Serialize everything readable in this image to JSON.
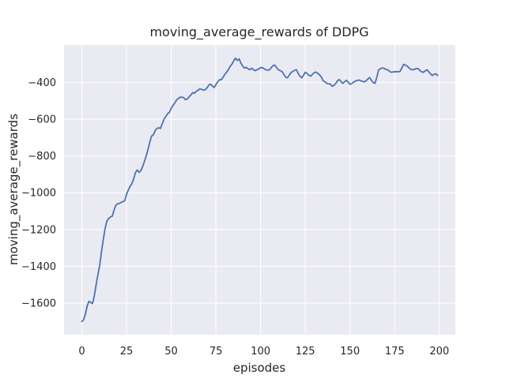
{
  "figure": {
    "background_color": "#ffffff"
  },
  "chart_data": {
    "type": "line",
    "title": "moving_average_rewards of DDPG",
    "xlabel": "episodes",
    "ylabel": "moving_average_rewards",
    "plot_bg_color": "#eaeaf2",
    "grid_color": "#ffffff",
    "text_color": "#262626",
    "line_color": "#4c72b0",
    "line_width": 1.8,
    "grid": true,
    "legend": false,
    "xticks": [
      0,
      25,
      50,
      75,
      100,
      125,
      150,
      175,
      200
    ],
    "xtick_labels": [
      "0",
      "25",
      "50",
      "75",
      "100",
      "125",
      "150",
      "175",
      "200"
    ],
    "yticks": [
      -400,
      -600,
      -800,
      -1000,
      -1200,
      -1400,
      -1600
    ],
    "ytick_labels": [
      "−400",
      "−600",
      "−800",
      "−1000",
      "−1200",
      "−1400",
      "−1600"
    ],
    "xlim": [
      -9.95,
      208.95
    ],
    "ylim": [
      -1771.6,
      -196.4
    ],
    "x_start": 0,
    "x_step": 1,
    "series": [
      {
        "name": "moving_average_rewards",
        "values": [
          -1700,
          -1690,
          -1660,
          -1615,
          -1590,
          -1597,
          -1602,
          -1560,
          -1500,
          -1445,
          -1395,
          -1320,
          -1255,
          -1195,
          -1155,
          -1140,
          -1132,
          -1128,
          -1095,
          -1068,
          -1060,
          -1058,
          -1052,
          -1048,
          -1043,
          -1009,
          -985,
          -965,
          -950,
          -925,
          -890,
          -876,
          -889,
          -880,
          -858,
          -830,
          -800,
          -765,
          -725,
          -692,
          -685,
          -663,
          -650,
          -647,
          -650,
          -624,
          -600,
          -585,
          -570,
          -563,
          -540,
          -525,
          -512,
          -495,
          -487,
          -481,
          -480,
          -483,
          -494,
          -490,
          -478,
          -468,
          -455,
          -459,
          -448,
          -443,
          -435,
          -438,
          -442,
          -440,
          -430,
          -415,
          -409,
          -420,
          -428,
          -412,
          -396,
          -386,
          -385,
          -372,
          -356,
          -344,
          -330,
          -312,
          -300,
          -282,
          -268,
          -281,
          -272,
          -296,
          -312,
          -322,
          -318,
          -326,
          -331,
          -323,
          -331,
          -336,
          -331,
          -326,
          -320,
          -319,
          -326,
          -331,
          -333,
          -331,
          -319,
          -308,
          -306,
          -321,
          -331,
          -336,
          -341,
          -356,
          -371,
          -375,
          -361,
          -346,
          -341,
          -334,
          -331,
          -351,
          -366,
          -375,
          -361,
          -345,
          -351,
          -361,
          -366,
          -356,
          -346,
          -344,
          -351,
          -359,
          -371,
          -391,
          -397,
          -405,
          -407,
          -409,
          -421,
          -416,
          -406,
          -391,
          -384,
          -396,
          -405,
          -396,
          -388,
          -399,
          -410,
          -406,
          -399,
          -393,
          -389,
          -387,
          -391,
          -394,
          -397,
          -391,
          -381,
          -374,
          -389,
          -401,
          -405,
          -371,
          -332,
          -326,
          -321,
          -323,
          -329,
          -331,
          -339,
          -345,
          -343,
          -342,
          -341,
          -342,
          -340,
          -321,
          -302,
          -306,
          -311,
          -321,
          -329,
          -331,
          -329,
          -325,
          -324,
          -334,
          -342,
          -345,
          -338,
          -331,
          -341,
          -353,
          -362,
          -356,
          -353,
          -362
        ]
      }
    ]
  }
}
